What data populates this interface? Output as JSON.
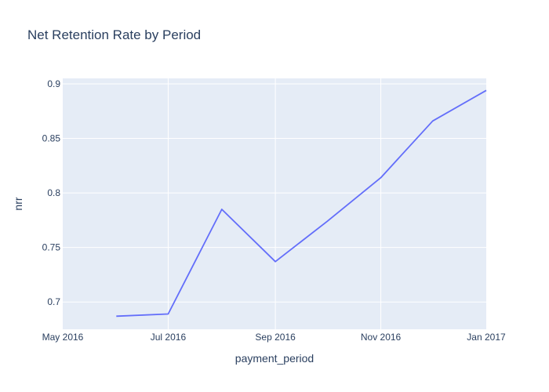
{
  "chart_data": {
    "type": "line",
    "title": "Net Retention Rate by Period",
    "xlabel": "payment_period",
    "ylabel": "nrr",
    "x_range": [
      "2016-05-01",
      "2017-01-01"
    ],
    "y_range": [
      0.675,
      0.905
    ],
    "x_ticks": [
      {
        "date": "2016-05-01",
        "label": "May 2016"
      },
      {
        "date": "2016-07-01",
        "label": "Jul 2016"
      },
      {
        "date": "2016-09-01",
        "label": "Sep 2016"
      },
      {
        "date": "2016-11-01",
        "label": "Nov 2016"
      },
      {
        "date": "2017-01-01",
        "label": "Jan 2017"
      }
    ],
    "y_ticks": [
      {
        "value": 0.7,
        "label": "0.7"
      },
      {
        "value": 0.75,
        "label": "0.75"
      },
      {
        "value": 0.8,
        "label": "0.8"
      },
      {
        "value": 0.85,
        "label": "0.85"
      },
      {
        "value": 0.9,
        "label": "0.9"
      }
    ],
    "grid": true,
    "colors": {
      "line": "#636efa",
      "plot_bg": "#e5ecf6",
      "grid": "#ffffff",
      "text": "#2a3f5f"
    },
    "series": [
      {
        "x": [
          "2016-06-01",
          "2016-07-01",
          "2016-08-01",
          "2016-09-01",
          "2016-10-01",
          "2016-11-01",
          "2016-12-01",
          "2017-01-01"
        ],
        "y": [
          0.687,
          0.689,
          0.785,
          0.737,
          0.774,
          0.814,
          0.866,
          0.894
        ]
      }
    ]
  }
}
